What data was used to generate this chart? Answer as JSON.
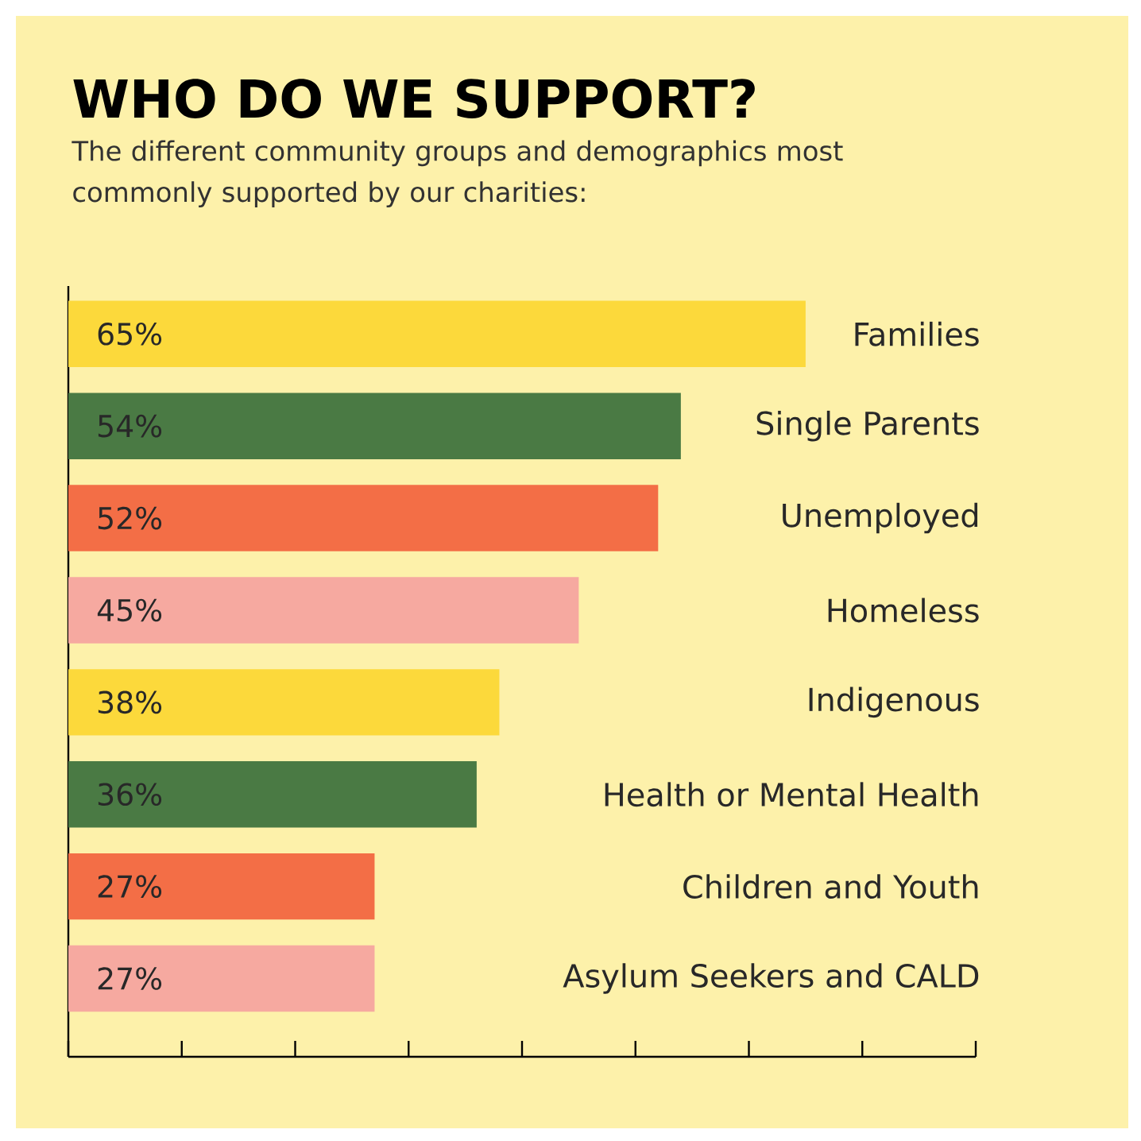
{
  "chart_data": {
    "type": "bar",
    "orientation": "horizontal",
    "title": "WHO DO WE SUPPORT?",
    "subtitle": "The different community groups and demographics most commonly supported by our charities:",
    "categories": [
      "Families",
      "Single Parents",
      "Unemployed",
      "Homeless",
      "Indigenous",
      "Health or Mental Health",
      "Children and Youth",
      "Asylum Seekers and CALD"
    ],
    "values": [
      65,
      54,
      52,
      45,
      38,
      36,
      27,
      27
    ],
    "value_labels": [
      "65%",
      "54%",
      "52%",
      "45%",
      "38%",
      "36%",
      "27%",
      "27%"
    ],
    "colors": [
      "#fcd93b",
      "#4a7a44",
      "#f36e46",
      "#f6a9a0",
      "#fcd93b",
      "#4a7a44",
      "#f36e46",
      "#f6a9a0"
    ],
    "xlim": [
      0,
      80
    ],
    "xticks": [
      {
        "value": 0,
        "label": null
      },
      {
        "value": 10,
        "label": null
      },
      {
        "value": 20,
        "label": null
      },
      {
        "value": 30,
        "label": null
      },
      {
        "value": 40,
        "label": null
      },
      {
        "value": 50,
        "label": null
      },
      {
        "value": 60,
        "label": null
      },
      {
        "value": 70,
        "label": null
      },
      {
        "value": 80,
        "label": null
      }
    ],
    "tick_labels": "y"
  }
}
